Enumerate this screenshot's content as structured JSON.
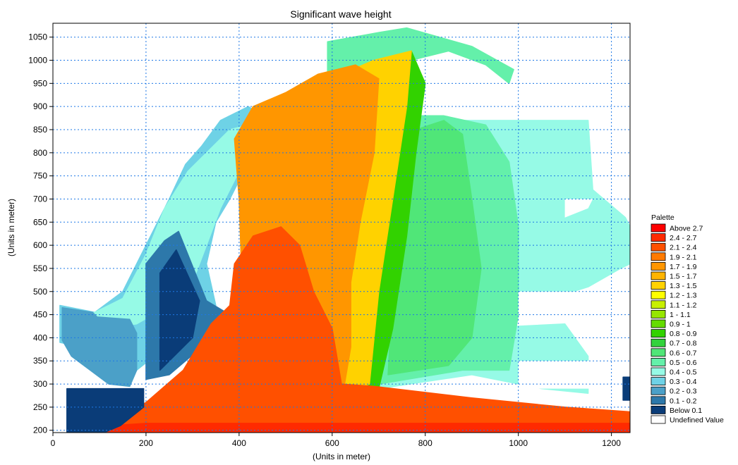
{
  "chart_data": {
    "type": "heatmap",
    "title": "Significant wave height",
    "xlabel": "(Units in meter)",
    "ylabel": "(Units in meter)",
    "xlim": [
      0,
      1240
    ],
    "ylim": [
      195,
      1080
    ],
    "xticks": [
      0,
      200,
      400,
      600,
      800,
      1000,
      1200
    ],
    "yticks": [
      200,
      250,
      300,
      350,
      400,
      450,
      500,
      550,
      600,
      650,
      700,
      750,
      800,
      850,
      900,
      950,
      1000,
      1050
    ],
    "grid": true,
    "legend": {
      "title": "Palette",
      "placement": "right",
      "entries": [
        {
          "label": "Above 2.7",
          "color": "#ff0000"
        },
        {
          "label": "2.4 - 2.7",
          "color": "#ff2a00"
        },
        {
          "label": "2.1 - 2.4",
          "color": "#ff5000"
        },
        {
          "label": "1.9 - 2.1",
          "color": "#ff7a00"
        },
        {
          "label": "1.7 - 1.9",
          "color": "#ff9600"
        },
        {
          "label": "1.5 - 1.7",
          "color": "#ffb400"
        },
        {
          "label": "1.3 - 1.5",
          "color": "#ffd200"
        },
        {
          "label": "1.2 - 1.3",
          "color": "#ffff00"
        },
        {
          "label": "1.1 - 1.2",
          "color": "#c8f000"
        },
        {
          "label": "1 - 1.1",
          "color": "#96e600"
        },
        {
          "label": "0.9 -   1",
          "color": "#64dc00"
        },
        {
          "label": "0.8 - 0.9",
          "color": "#32d200"
        },
        {
          "label": "0.7 - 0.8",
          "color": "#32d23c"
        },
        {
          "label": "0.6 - 0.7",
          "color": "#50e678"
        },
        {
          "label": "0.5 - 0.6",
          "color": "#64f0aa"
        },
        {
          "label": "0.4 - 0.5",
          "color": "#96fae6"
        },
        {
          "label": "0.3 - 0.4",
          "color": "#6ed2e6"
        },
        {
          "label": "0.2 - 0.3",
          "color": "#4ba0c8"
        },
        {
          "label": "0.1 - 0.2",
          "color": "#2d78aa"
        },
        {
          "label": "Below 0.1",
          "color": "#0a3c78"
        },
        {
          "label": "Undefined Value",
          "color": "#ffffff"
        }
      ]
    },
    "regions": [
      {
        "name": "west-shelf",
        "color": "#6ed2e6",
        "points": [
          [
            15,
            390
          ],
          [
            15,
            470
          ],
          [
            90,
            455
          ],
          [
            150,
            500
          ],
          [
            200,
            600
          ],
          [
            250,
            700
          ],
          [
            285,
            775
          ],
          [
            320,
            815
          ],
          [
            360,
            870
          ],
          [
            420,
            900
          ],
          [
            450,
            880
          ],
          [
            420,
            780
          ],
          [
            380,
            700
          ],
          [
            350,
            650
          ],
          [
            330,
            560
          ],
          [
            350,
            470
          ],
          [
            300,
            430
          ],
          [
            230,
            370
          ],
          [
            180,
            330
          ],
          [
            130,
            350
          ],
          [
            60,
            380
          ]
        ]
      },
      {
        "name": "west-shelf-inner",
        "color": "#96fae6",
        "points": [
          [
            60,
            440
          ],
          [
            150,
            485
          ],
          [
            200,
            580
          ],
          [
            240,
            680
          ],
          [
            290,
            760
          ],
          [
            340,
            810
          ],
          [
            380,
            850
          ],
          [
            420,
            860
          ],
          [
            400,
            760
          ],
          [
            360,
            680
          ],
          [
            330,
            600
          ],
          [
            300,
            520
          ],
          [
            250,
            470
          ],
          [
            180,
            430
          ],
          [
            110,
            420
          ]
        ]
      },
      {
        "name": "blue-lagoon-west",
        "color": "#4ba0c8",
        "points": [
          [
            20,
            395
          ],
          [
            20,
            465
          ],
          [
            85,
            455
          ],
          [
            95,
            445
          ],
          [
            165,
            440
          ],
          [
            180,
            410
          ],
          [
            180,
            330
          ],
          [
            165,
            295
          ],
          [
            120,
            300
          ],
          [
            80,
            330
          ],
          [
            40,
            360
          ]
        ]
      },
      {
        "name": "blue-lagoon-east",
        "color": "#2d78aa",
        "points": [
          [
            200,
            310
          ],
          [
            200,
            560
          ],
          [
            240,
            610
          ],
          [
            270,
            630
          ],
          [
            330,
            480
          ],
          [
            380,
            450
          ],
          [
            320,
            380
          ],
          [
            250,
            320
          ]
        ]
      },
      {
        "name": "blue-lagoon-east-deep",
        "color": "#0a3c78",
        "points": [
          [
            230,
            330
          ],
          [
            230,
            540
          ],
          [
            265,
            590
          ],
          [
            315,
            480
          ],
          [
            300,
            400
          ]
        ]
      },
      {
        "name": "east-main",
        "color": "#96fae6",
        "points": [
          [
            700,
            290
          ],
          [
            700,
            720
          ],
          [
            760,
            880
          ],
          [
            830,
            880
          ],
          [
            840,
            860
          ],
          [
            870,
            870
          ],
          [
            1150,
            870
          ],
          [
            1160,
            720
          ],
          [
            1230,
            660
          ],
          [
            1240,
            640
          ],
          [
            1240,
            560
          ],
          [
            1220,
            550
          ],
          [
            1150,
            510
          ],
          [
            960,
            450
          ],
          [
            860,
            450
          ],
          [
            820,
            420
          ],
          [
            900,
            420
          ],
          [
            1100,
            430
          ],
          [
            1150,
            360
          ],
          [
            1150,
            280
          ],
          [
            1050,
            290
          ],
          [
            900,
            320
          ]
        ]
      },
      {
        "name": "east-green",
        "color": "#64f0aa",
        "points": [
          [
            700,
            300
          ],
          [
            710,
            720
          ],
          [
            760,
            880
          ],
          [
            840,
            880
          ],
          [
            930,
            860
          ],
          [
            980,
            780
          ],
          [
            1000,
            640
          ],
          [
            1000,
            450
          ],
          [
            980,
            330
          ],
          [
            880,
            330
          ]
        ]
      },
      {
        "name": "east-green-2",
        "color": "#50e678",
        "points": [
          [
            720,
            320
          ],
          [
            740,
            700
          ],
          [
            780,
            850
          ],
          [
            840,
            870
          ],
          [
            880,
            840
          ],
          [
            900,
            700
          ],
          [
            920,
            550
          ],
          [
            900,
            400
          ],
          [
            850,
            340
          ]
        ]
      },
      {
        "name": "north-arm",
        "color": "#64f0aa",
        "points": [
          [
            590,
            960
          ],
          [
            590,
            1040
          ],
          [
            700,
            1060
          ],
          [
            760,
            1070
          ],
          [
            900,
            1030
          ],
          [
            990,
            980
          ],
          [
            980,
            950
          ],
          [
            930,
            990
          ],
          [
            850,
            1020
          ],
          [
            770,
            1000
          ],
          [
            700,
            960
          ]
        ]
      },
      {
        "name": "channel-green",
        "color": "#32d200",
        "points": [
          [
            560,
            280
          ],
          [
            560,
            880
          ],
          [
            590,
            940
          ],
          [
            640,
            960
          ],
          [
            700,
            990
          ],
          [
            770,
            1020
          ],
          [
            800,
            950
          ],
          [
            780,
            800
          ],
          [
            760,
            620
          ],
          [
            730,
            420
          ],
          [
            700,
            290
          ]
        ]
      },
      {
        "name": "channel-yellow",
        "color": "#ffd200",
        "points": [
          [
            530,
            260
          ],
          [
            520,
            880
          ],
          [
            560,
            950
          ],
          [
            620,
            970
          ],
          [
            690,
            1000
          ],
          [
            770,
            1020
          ],
          [
            760,
            900
          ],
          [
            730,
            700
          ],
          [
            700,
            500
          ],
          [
            680,
            300
          ]
        ]
      },
      {
        "name": "channel-orange",
        "color": "#ff9600",
        "points": [
          [
            410,
            400
          ],
          [
            400,
            700
          ],
          [
            390,
            830
          ],
          [
            430,
            900
          ],
          [
            500,
            930
          ],
          [
            570,
            970
          ],
          [
            650,
            990
          ],
          [
            700,
            960
          ],
          [
            690,
            800
          ],
          [
            660,
            650
          ],
          [
            640,
            520
          ],
          [
            640,
            380
          ],
          [
            620,
            260
          ]
        ]
      },
      {
        "name": "channel-red-core",
        "color": "#ff5000",
        "points": [
          [
            340,
            430
          ],
          [
            380,
            470
          ],
          [
            390,
            560
          ],
          [
            430,
            620
          ],
          [
            490,
            640
          ],
          [
            530,
            600
          ],
          [
            560,
            500
          ],
          [
            600,
            420
          ],
          [
            620,
            300
          ],
          [
            690,
            295
          ],
          [
            900,
            270
          ],
          [
            1100,
            250
          ],
          [
            1240,
            240
          ],
          [
            1240,
            195
          ],
          [
            90,
            195
          ],
          [
            200,
            260
          ],
          [
            280,
            330
          ]
        ]
      },
      {
        "name": "south-edge",
        "color": "#ff2a00",
        "points": [
          [
            100,
            195
          ],
          [
            1240,
            195
          ],
          [
            1240,
            215
          ],
          [
            600,
            215
          ],
          [
            200,
            215
          ],
          [
            120,
            210
          ]
        ]
      },
      {
        "name": "bottom-left-block",
        "color": "#0a3c78",
        "points": [
          [
            30,
            195
          ],
          [
            30,
            290
          ],
          [
            195,
            290
          ],
          [
            195,
            250
          ],
          [
            145,
            210
          ],
          [
            110,
            195
          ]
        ]
      },
      {
        "name": "right-small-block",
        "color": "#0a3c78",
        "points": [
          [
            1225,
            265
          ],
          [
            1225,
            315
          ],
          [
            1240,
            315
          ],
          [
            1240,
            265
          ]
        ]
      }
    ],
    "notches": [
      {
        "name": "notch-upper",
        "points": [
          [
            1100,
            660
          ],
          [
            1150,
            680
          ],
          [
            1160,
            700
          ],
          [
            1100,
            700
          ]
        ]
      },
      {
        "name": "notch-middle",
        "points": [
          [
            1000,
            450
          ],
          [
            1160,
            450
          ],
          [
            1160,
            500
          ],
          [
            1000,
            500
          ]
        ]
      },
      {
        "name": "notch-lower",
        "points": [
          [
            1000,
            290
          ],
          [
            1160,
            290
          ],
          [
            1160,
            350
          ],
          [
            1100,
            350
          ],
          [
            1000,
            350
          ]
        ]
      }
    ]
  }
}
